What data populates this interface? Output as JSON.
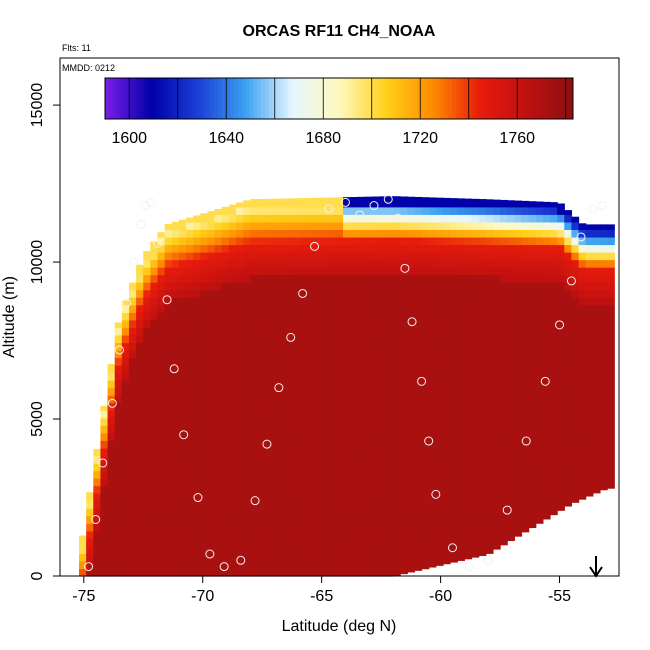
{
  "chart_data": {
    "type": "heatmap",
    "title": "ORCAS RF11 CH4_NOAA",
    "annotations": {
      "flights": "Flts: 11",
      "date": "MMDD: 0212"
    },
    "xlabel": "Latitude (deg N)",
    "ylabel": "Altitude (m)",
    "xlim": [
      -76,
      -52.5
    ],
    "ylim": [
      0,
      16500
    ],
    "x_ticks": [
      -75,
      -70,
      -65,
      -60,
      -55
    ],
    "x_tick_labels": [
      "-75",
      "-70",
      "-65",
      "-60",
      "-55"
    ],
    "y_ticks": [
      0,
      5000,
      10000,
      15000
    ],
    "y_tick_labels": [
      "0",
      "5000",
      "10000",
      "15000"
    ],
    "colorbar": {
      "range": [
        1590,
        1783
      ],
      "ticks": [
        1600,
        1640,
        1680,
        1720,
        1760
      ],
      "tick_labels": [
        "1600",
        "1640",
        "1680",
        "1720",
        "1760"
      ],
      "colors": [
        "#7b1fe8",
        "#0000a8",
        "#1c3fd8",
        "#3aa0f0",
        "#e6f6ff",
        "#fff9c0",
        "#ffd11a",
        "#ff8c00",
        "#e81c0c",
        "#c01010",
        "#8b1010"
      ]
    },
    "profile_lower_bounds": {
      "lat": [
        -75.2,
        -73.5,
        -67.5,
        -62.0,
        -58.0,
        -54.5,
        -53.0
      ],
      "alt": [
        0,
        0,
        0,
        0,
        700,
        2300,
        2800
      ]
    },
    "profile_upper_bounds": {
      "lat": [
        -75.2,
        -74.2,
        -73.5,
        -72.5,
        -71.5,
        -68.0,
        -62.0,
        -58.0,
        -55.0,
        -54.0
      ],
      "alt": [
        600,
        5200,
        8300,
        10200,
        11200,
        12000,
        12100,
        12000,
        11900,
        11200
      ]
    },
    "flight_track": {
      "lat": [
        -74.8,
        -74.5,
        -74.2,
        -73.8,
        -73.5,
        -73.2,
        -72.9,
        -72.6,
        -72.4,
        -72.2,
        -71.9,
        -71.5,
        -71.2,
        -70.8,
        -70.2,
        -69.7,
        -69.1,
        -68.4,
        -67.8,
        -67.3,
        -66.8,
        -66.3,
        -65.8,
        -65.3,
        -64.7,
        -64.0,
        -63.4,
        -62.8,
        -62.2,
        -61.8,
        -61.5,
        -61.2,
        -60.8,
        -60.5,
        -60.2,
        -59.5,
        -58.8,
        -58.0,
        -57.2,
        -56.4,
        -55.6,
        -55.0,
        -54.5,
        -54.1,
        -53.6,
        -53.2
      ],
      "alt": [
        300,
        1800,
        3600,
        5500,
        7200,
        8700,
        10000,
        11200,
        11800,
        11900,
        10600,
        8800,
        6600,
        4500,
        2500,
        700,
        300,
        500,
        2400,
        4200,
        6000,
        7600,
        9000,
        10500,
        11700,
        11900,
        11500,
        11800,
        12000,
        11400,
        9800,
        8100,
        6200,
        4300,
        2600,
        900,
        300,
        500,
        2100,
        4300,
        6200,
        8000,
        9400,
        10800,
        11700,
        11800
      ]
    }
  }
}
